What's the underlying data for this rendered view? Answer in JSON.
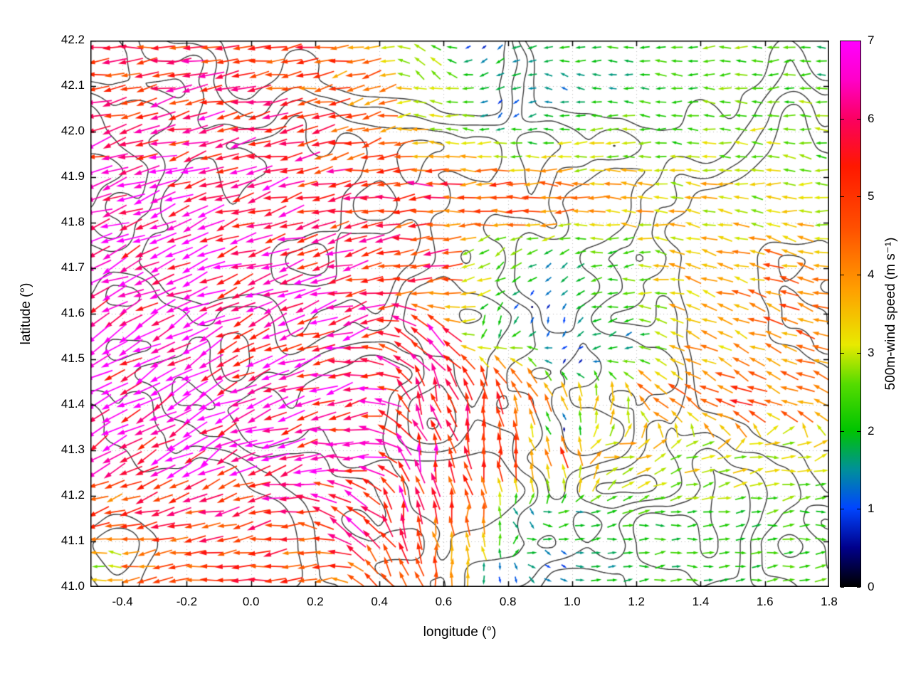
{
  "figure": {
    "background": "#ffffff"
  },
  "chart_data": {
    "type": "quiver",
    "title": "",
    "xlabel": "longitude (°)",
    "ylabel": "latitude (°)",
    "xlim": [
      -0.5,
      1.8
    ],
    "ylim": [
      41.0,
      42.2
    ],
    "xticks": [
      -0.4,
      -0.2,
      0.0,
      0.2,
      0.4,
      0.6,
      0.8,
      1.0,
      1.2,
      1.4,
      1.6,
      1.8
    ],
    "xtick_labels": [
      "-0.4",
      "-0.2",
      "0.0",
      "0.2",
      "0.4",
      "0.6",
      "0.8",
      "1.0",
      "1.2",
      "1.4",
      "1.6",
      "1.8"
    ],
    "yticks": [
      41.0,
      41.1,
      41.2,
      41.3,
      41.4,
      41.5,
      41.6,
      41.7,
      41.8,
      41.9,
      42.0,
      42.1,
      42.2
    ],
    "ytick_labels": [
      "41.0",
      "41.1",
      "41.2",
      "41.3",
      "41.4",
      "41.5",
      "41.6",
      "41.7",
      "41.8",
      "41.9",
      "42.0",
      "42.1",
      "42.2"
    ],
    "grid": true,
    "colorbar": {
      "label": "500m-wind speed (m s⁻¹)",
      "min": 0,
      "max": 7,
      "ticks": [
        0,
        1,
        2,
        3,
        4,
        5,
        6,
        7
      ],
      "tick_labels": [
        "0",
        "1",
        "2",
        "3",
        "4",
        "5",
        "6",
        "7"
      ],
      "stops": [
        [
          0.0,
          "#000000"
        ],
        [
          0.5,
          "#00008b"
        ],
        [
          1.0,
          "#0045ff"
        ],
        [
          1.5,
          "#00909a"
        ],
        [
          2.0,
          "#00c400"
        ],
        [
          2.6,
          "#55dc00"
        ],
        [
          3.1,
          "#e8ea00"
        ],
        [
          3.8,
          "#ffa000"
        ],
        [
          4.6,
          "#ff5000"
        ],
        [
          5.4,
          "#ff1800"
        ],
        [
          6.0,
          "#fb0060"
        ],
        [
          6.5,
          "#ff00c8"
        ],
        [
          7.0,
          "#ff00ff"
        ]
      ]
    },
    "contours": {
      "color": "#3c3c3c",
      "description": "terrain elevation contour lines (gray)"
    },
    "arrow_grid": {
      "cols": 46,
      "rows": 40
    },
    "direction_convention": "degrees counterclockwise from east; arrow points in flow direction; entries are [lon, lat, direction_deg, speed_ms]",
    "wind_field_samples": [
      [
        -0.45,
        42.15,
        185,
        5.3
      ],
      [
        -0.1,
        42.12,
        190,
        5.6
      ],
      [
        0.15,
        42.15,
        185,
        5.0
      ],
      [
        0.35,
        42.1,
        200,
        4.4
      ],
      [
        0.55,
        42.15,
        130,
        2.6
      ],
      [
        0.75,
        42.15,
        210,
        1.8
      ],
      [
        0.95,
        42.1,
        160,
        1.4
      ],
      [
        1.15,
        42.1,
        175,
        1.8
      ],
      [
        1.35,
        42.1,
        180,
        2.2
      ],
      [
        1.6,
        42.12,
        185,
        2.4
      ],
      [
        1.78,
        42.15,
        180,
        2.0
      ],
      [
        -0.45,
        41.95,
        195,
        5.8
      ],
      [
        -0.15,
        42.0,
        195,
        6.0
      ],
      [
        0.1,
        41.98,
        190,
        5.6
      ],
      [
        0.35,
        41.97,
        195,
        4.8
      ],
      [
        0.6,
        42.0,
        170,
        3.0
      ],
      [
        0.85,
        41.98,
        180,
        2.2
      ],
      [
        1.05,
        41.95,
        185,
        2.8
      ],
      [
        1.3,
        41.97,
        175,
        2.4
      ],
      [
        1.55,
        41.95,
        180,
        2.6
      ],
      [
        1.78,
        41.95,
        170,
        2.4
      ],
      [
        -0.45,
        41.85,
        200,
        6.2
      ],
      [
        -0.2,
        41.87,
        200,
        6.4
      ],
      [
        0.05,
        41.88,
        195,
        6.3
      ],
      [
        0.3,
        41.9,
        190,
        5.8
      ],
      [
        0.55,
        41.88,
        182,
        5.6
      ],
      [
        0.8,
        41.86,
        180,
        5.2
      ],
      [
        1.0,
        41.87,
        178,
        4.6
      ],
      [
        1.2,
        41.86,
        172,
        4.0
      ],
      [
        1.45,
        41.9,
        170,
        3.4
      ],
      [
        1.7,
        41.88,
        178,
        3.0
      ],
      [
        -0.45,
        41.72,
        205,
        6.6
      ],
      [
        -0.2,
        41.75,
        205,
        6.7
      ],
      [
        0.05,
        41.72,
        200,
        6.6
      ],
      [
        0.3,
        41.73,
        195,
        6.2
      ],
      [
        0.55,
        41.72,
        185,
        5.6
      ],
      [
        0.75,
        41.72,
        220,
        2.4
      ],
      [
        0.95,
        41.7,
        230,
        1.4
      ],
      [
        1.15,
        41.72,
        190,
        2.2
      ],
      [
        1.4,
        41.72,
        160,
        3.6
      ],
      [
        1.65,
        41.7,
        165,
        4.2
      ],
      [
        -0.45,
        41.58,
        210,
        6.9
      ],
      [
        -0.2,
        41.55,
        212,
        7.0
      ],
      [
        0.05,
        41.6,
        205,
        6.8
      ],
      [
        0.3,
        41.58,
        198,
        6.6
      ],
      [
        0.55,
        41.55,
        140,
        6.2
      ],
      [
        0.75,
        41.58,
        260,
        1.8
      ],
      [
        0.95,
        41.58,
        270,
        1.1
      ],
      [
        1.15,
        41.55,
        210,
        1.5
      ],
      [
        1.4,
        41.58,
        155,
        4.0
      ],
      [
        1.65,
        41.6,
        160,
        4.5
      ],
      [
        -0.45,
        41.42,
        212,
        6.8
      ],
      [
        -0.2,
        41.44,
        212,
        6.9
      ],
      [
        0.05,
        41.4,
        205,
        6.8
      ],
      [
        0.3,
        41.42,
        195,
        6.6
      ],
      [
        0.55,
        41.42,
        105,
        6.2
      ],
      [
        0.72,
        41.4,
        95,
        5.6
      ],
      [
        0.9,
        41.42,
        120,
        4.6
      ],
      [
        1.1,
        41.4,
        80,
        3.2
      ],
      [
        1.3,
        41.42,
        150,
        4.4
      ],
      [
        1.5,
        41.4,
        155,
        4.8
      ],
      [
        1.72,
        41.42,
        160,
        4.4
      ],
      [
        -0.45,
        41.3,
        210,
        6.6
      ],
      [
        -0.15,
        41.3,
        212,
        6.8
      ],
      [
        0.1,
        41.28,
        200,
        6.6
      ],
      [
        0.35,
        41.3,
        180,
        6.4
      ],
      [
        0.55,
        41.28,
        95,
        6.0
      ],
      [
        0.75,
        41.3,
        90,
        5.4
      ],
      [
        0.95,
        41.3,
        110,
        4.8
      ],
      [
        1.15,
        41.3,
        10,
        3.4
      ],
      [
        1.4,
        41.28,
        5,
        3.0
      ],
      [
        1.65,
        41.3,
        0,
        3.0
      ],
      [
        -0.45,
        41.18,
        200,
        4.6
      ],
      [
        -0.2,
        41.15,
        195,
        5.2
      ],
      [
        0.05,
        41.18,
        195,
        5.6
      ],
      [
        0.3,
        41.15,
        150,
        6.0
      ],
      [
        0.5,
        41.18,
        100,
        6.0
      ],
      [
        0.68,
        41.15,
        90,
        4.6
      ],
      [
        0.85,
        41.15,
        300,
        1.2
      ],
      [
        1.05,
        41.15,
        0,
        1.6
      ],
      [
        1.3,
        41.15,
        0,
        2.0
      ],
      [
        1.55,
        41.15,
        5,
        2.2
      ],
      [
        1.78,
        41.15,
        0,
        2.2
      ],
      [
        -0.45,
        41.05,
        170,
        3.2
      ],
      [
        -0.3,
        41.03,
        190,
        4.6
      ],
      [
        -0.05,
        41.05,
        190,
        5.0
      ],
      [
        0.2,
        41.05,
        195,
        4.6
      ],
      [
        0.42,
        41.05,
        120,
        5.4
      ],
      [
        0.6,
        41.05,
        90,
        4.4
      ],
      [
        0.78,
        41.03,
        280,
        1.0
      ],
      [
        0.95,
        41.05,
        320,
        0.9
      ],
      [
        1.15,
        41.05,
        0,
        1.6
      ],
      [
        1.4,
        41.05,
        0,
        2.0
      ],
      [
        1.65,
        41.03,
        5,
        2.2
      ],
      [
        0.88,
        41.62,
        270,
        0.4
      ],
      [
        1.0,
        41.5,
        250,
        0.5
      ],
      [
        0.8,
        42.05,
        240,
        0.8
      ],
      [
        0.97,
        41.35,
        270,
        0.6
      ],
      [
        0.72,
        42.18,
        230,
        0.7
      ]
    ]
  }
}
